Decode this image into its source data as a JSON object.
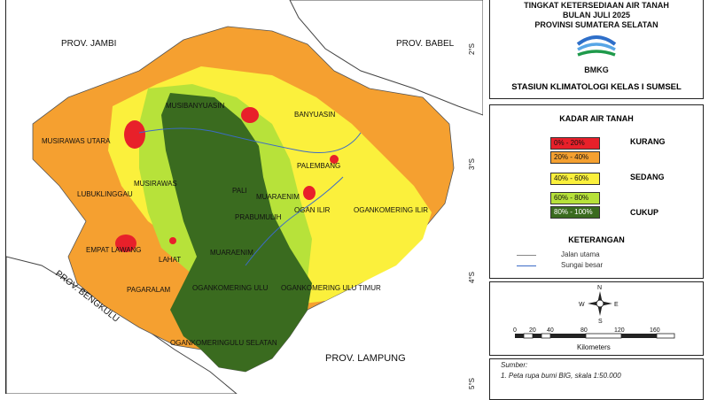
{
  "title": {
    "line1": "TINGKAT KETERSEDIAAN AIR TANAH",
    "line2": "BULAN JULI 2025",
    "line3": "PROVINSI SUMATERA SELATAN",
    "logo_text": "BMKG",
    "station": "STASIUN KLIMATOLOGI KELAS I SUMSEL"
  },
  "legend": {
    "title": "KADAR AIR TANAH",
    "classes": [
      {
        "label": "0% - 20%",
        "color": "#e8202a"
      },
      {
        "label": "20% - 40%",
        "color": "#f5a030"
      },
      {
        "label": "40% - 60%",
        "color": "#fbf03c"
      },
      {
        "label": "60% - 80%",
        "color": "#b7e23a"
      },
      {
        "label": "80% - 100%",
        "color": "#3a6b1f"
      }
    ],
    "categories": [
      "KURANG",
      "SEDANG",
      "CUKUP"
    ],
    "keterangan_title": "KETERANGAN",
    "items": [
      "Jalan utama",
      "Sungai besar"
    ]
  },
  "scale": {
    "ticks": [
      "0",
      "20",
      "40",
      "80",
      "120",
      "160"
    ],
    "unit": "Kilometers",
    "compass": [
      "N",
      "S",
      "E",
      "W"
    ]
  },
  "source": {
    "heading": "Sumber:",
    "line1": "1. Peta rupa bumi BIG, skala 1:50.000"
  },
  "map": {
    "neighbors": [
      "PROV. JAMBI",
      "PROV. BABEL",
      "PROV. BENGKULU",
      "PROV. LAMPUNG"
    ],
    "regions": [
      "MUSIBANYUASIN",
      "BANYUASIN",
      "MUSIRAWAS UTARA",
      "MUSIRAWAS",
      "LUBUKLINGGAU",
      "PALI",
      "PALEMBANG",
      "MUARAENIM",
      "PRABUMULIH",
      "OGAN ILIR",
      "OGANKOMERING ILIR",
      "EMPAT LAWANG",
      "LAHAT",
      "MUARAENIM",
      "PAGARALAM",
      "OGANKOMERING ULU",
      "OGANKOMERING ULU TIMUR",
      "OGANKOMERINGULU SELATAN"
    ],
    "lat_labels": [
      "2°S",
      "3°S",
      "4°S",
      "5°S"
    ]
  },
  "colors": {
    "sea": "#ffffff",
    "neighbor_land": "#ffffff",
    "very_dry": "#e8202a",
    "dry": "#f5a030",
    "medium": "#fbf03c",
    "wet": "#b7e23a",
    "very_wet": "#3a6b1f"
  }
}
